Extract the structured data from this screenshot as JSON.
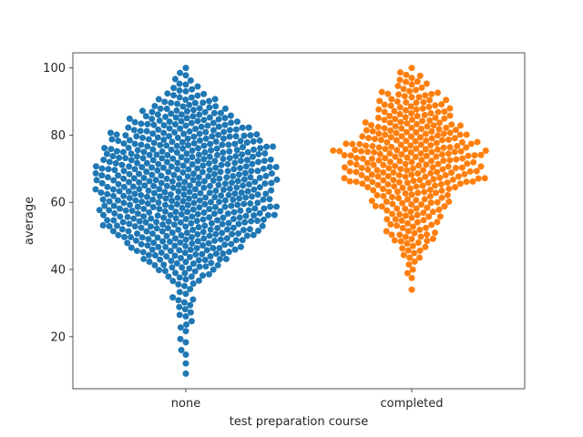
{
  "chart_data": {
    "type": "scatter",
    "subtype": "swarm",
    "title": "",
    "xlabel": "test preparation course",
    "ylabel": "average",
    "categories": [
      "none",
      "completed"
    ],
    "ylim": [
      4.5,
      104.5
    ],
    "yticks": [
      20,
      40,
      60,
      80,
      100
    ],
    "grid": false,
    "legend": "none",
    "series": [
      {
        "category": "none",
        "color": "#1f77b4",
        "count": 642,
        "min": 9,
        "max": 100,
        "density_profile": [
          [
            9,
            1
          ],
          [
            18.5,
            1
          ],
          [
            23,
            2
          ],
          [
            26,
            2
          ],
          [
            29,
            3
          ],
          [
            31,
            4
          ],
          [
            34,
            2
          ],
          [
            37,
            6
          ],
          [
            39,
            8
          ],
          [
            40,
            10
          ],
          [
            43,
            14
          ],
          [
            46,
            18
          ],
          [
            49,
            22
          ],
          [
            52,
            26
          ],
          [
            55,
            28
          ],
          [
            58,
            30
          ],
          [
            61,
            30
          ],
          [
            64,
            30
          ],
          [
            67,
            30
          ],
          [
            70,
            30
          ],
          [
            73,
            29
          ],
          [
            76,
            27
          ],
          [
            79,
            25
          ],
          [
            82,
            21
          ],
          [
            85,
            17
          ],
          [
            88,
            13
          ],
          [
            91,
            8
          ],
          [
            94,
            5
          ],
          [
            96,
            3
          ],
          [
            98,
            2
          ],
          [
            100,
            2
          ]
        ]
      },
      {
        "category": "completed",
        "color": "#ff7f0e",
        "count": 358,
        "min": 34,
        "max": 100,
        "density_profile": [
          [
            34,
            1
          ],
          [
            37,
            1
          ],
          [
            39,
            2
          ],
          [
            42,
            2
          ],
          [
            44,
            4
          ],
          [
            46,
            5
          ],
          [
            48,
            7
          ],
          [
            50,
            10
          ],
          [
            52,
            8
          ],
          [
            55,
            10
          ],
          [
            58,
            12
          ],
          [
            60,
            14
          ],
          [
            62,
            14
          ],
          [
            64,
            16
          ],
          [
            66,
            26
          ],
          [
            69,
            24
          ],
          [
            72,
            24
          ],
          [
            75,
            28
          ],
          [
            78,
            22
          ],
          [
            81,
            20
          ],
          [
            84,
            16
          ],
          [
            87,
            14
          ],
          [
            90,
            12
          ],
          [
            92,
            10
          ],
          [
            94,
            7
          ],
          [
            96,
            5
          ],
          [
            98,
            4
          ],
          [
            100,
            2
          ]
        ]
      }
    ]
  }
}
